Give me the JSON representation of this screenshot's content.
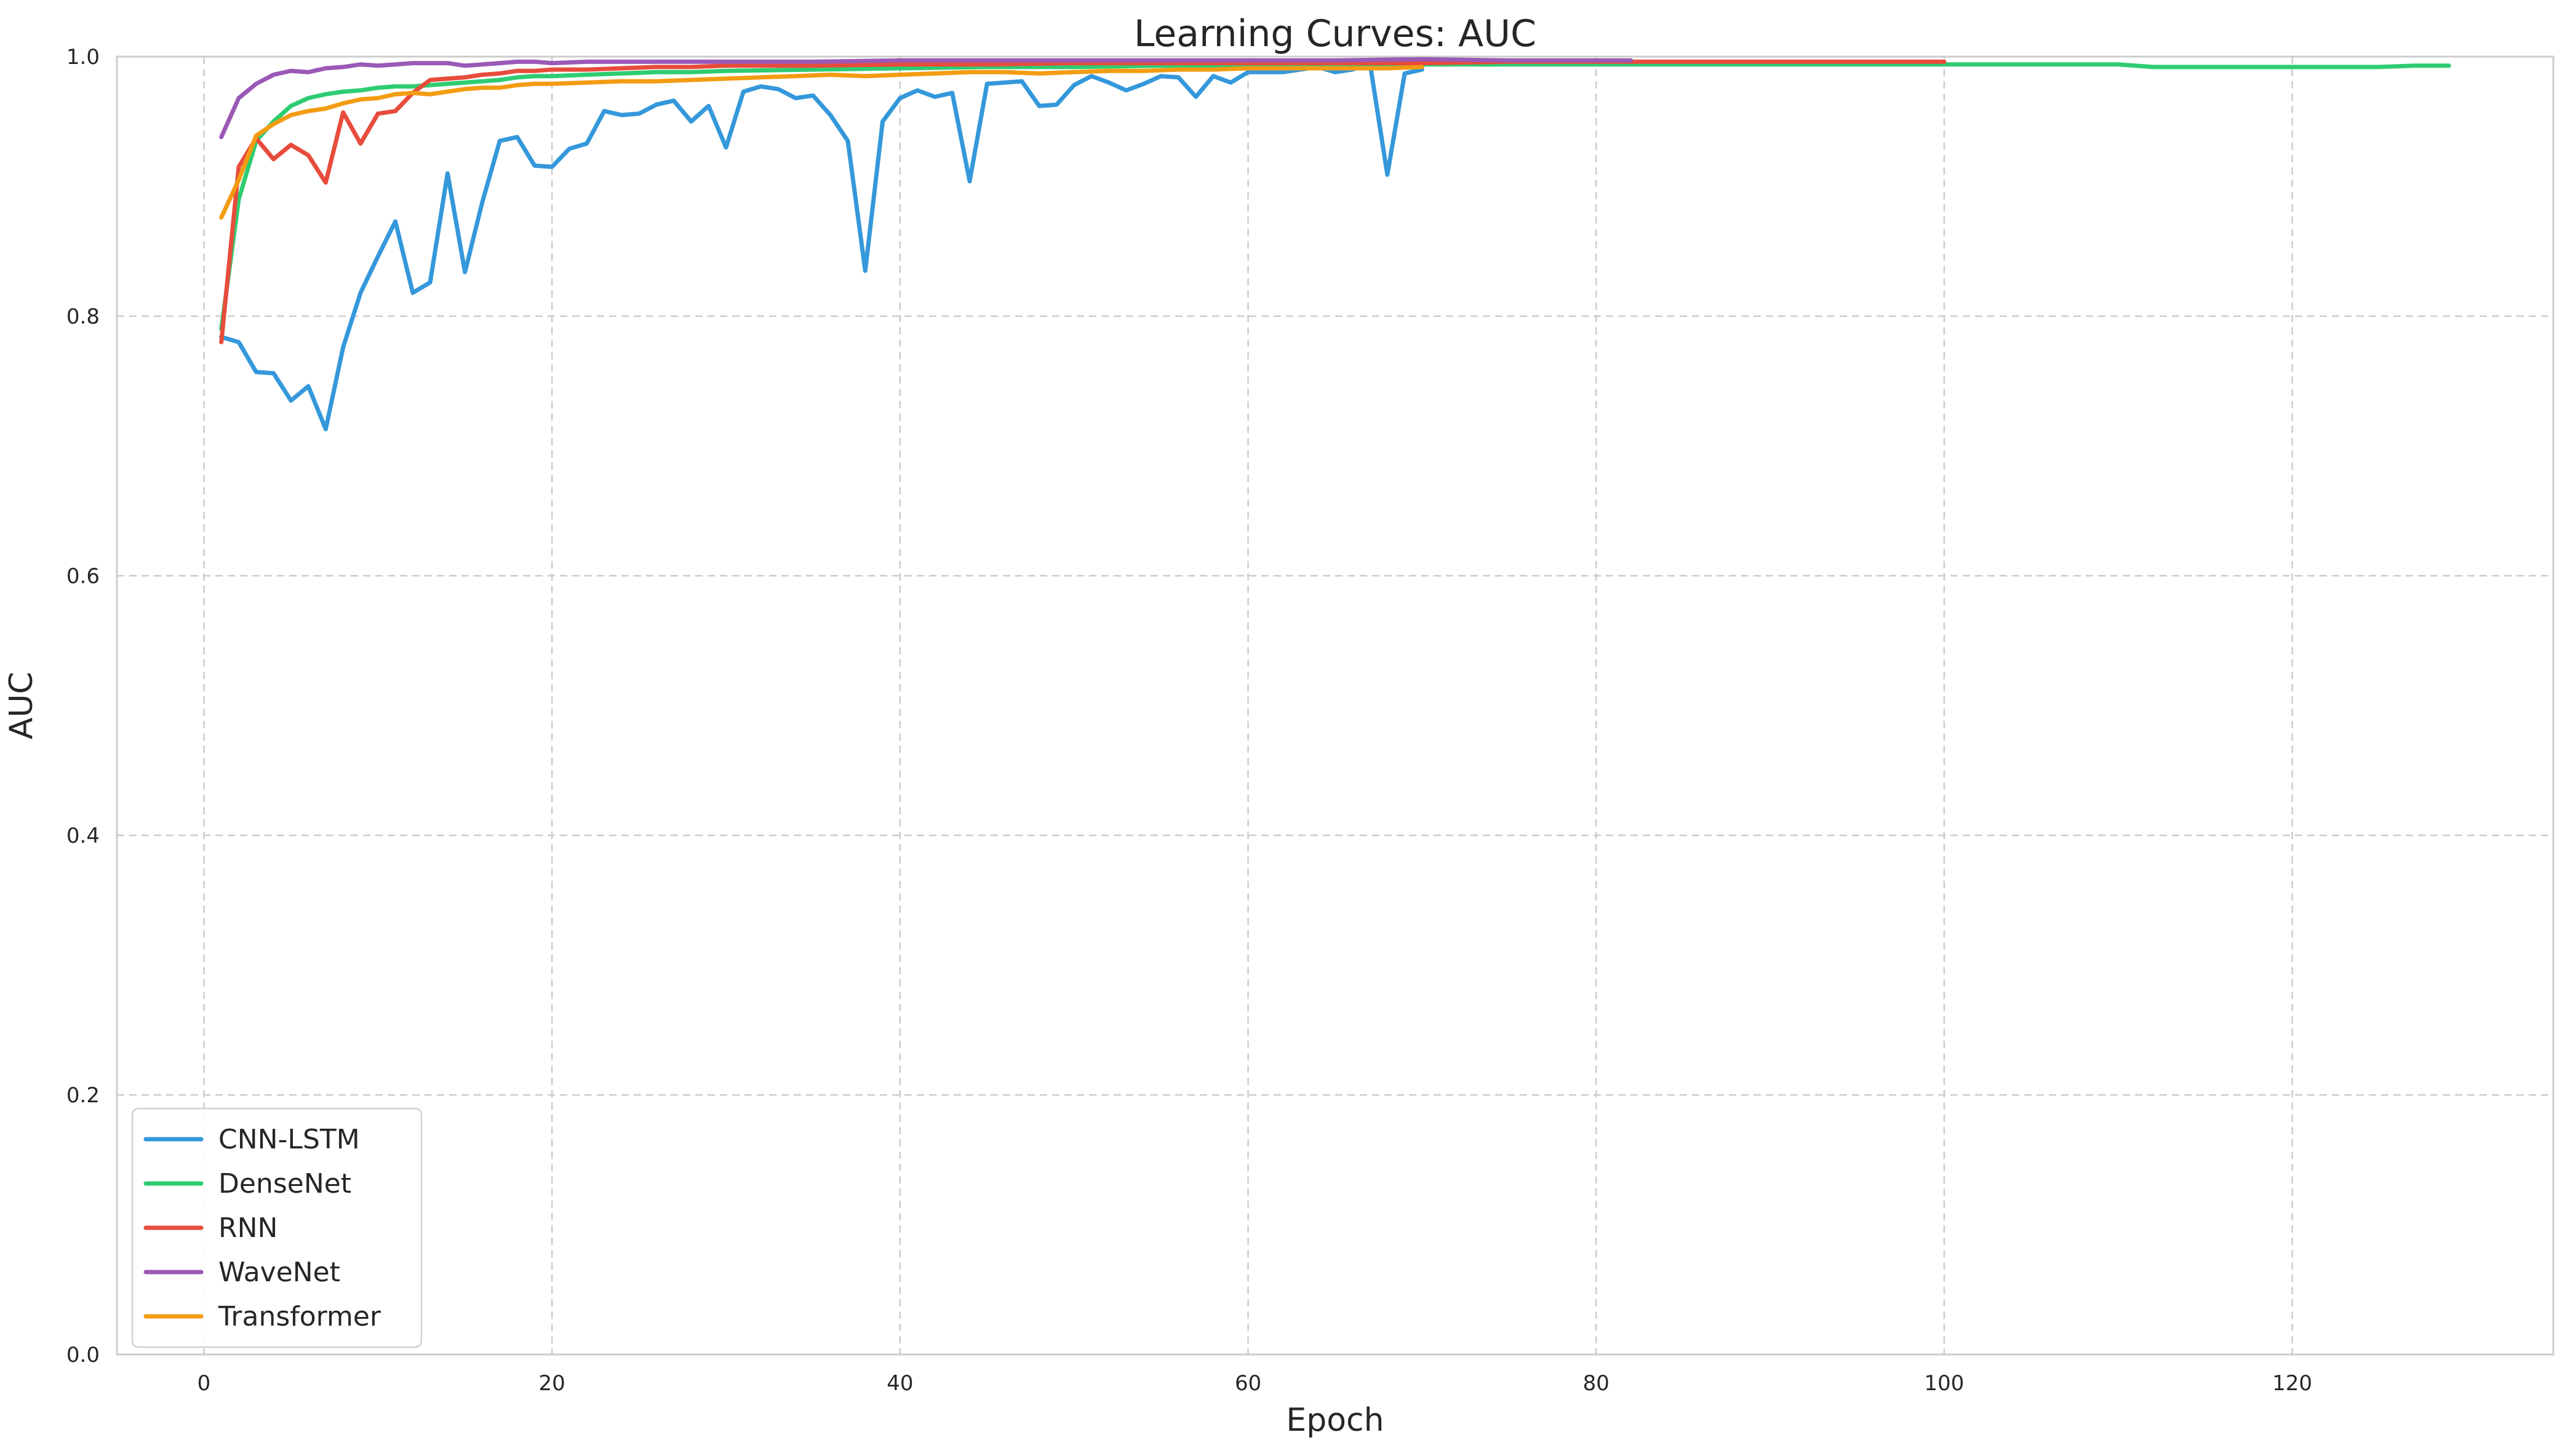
{
  "chart_data": {
    "type": "line",
    "title": "Learning Curves: AUC",
    "xlabel": "Epoch",
    "ylabel": "AUC",
    "xlim": [
      -5,
      135
    ],
    "ylim": [
      0.0,
      1.0
    ],
    "xticks": [
      0,
      20,
      40,
      60,
      80,
      100,
      120
    ],
    "yticks": [
      0.0,
      0.2,
      0.4,
      0.6,
      0.8,
      1.0
    ],
    "xtick_labels": [
      "0",
      "20",
      "40",
      "60",
      "80",
      "100",
      "120"
    ],
    "ytick_labels": [
      "0.0",
      "0.2",
      "0.4",
      "0.6",
      "0.8",
      "1.0"
    ],
    "grid": true,
    "legend_position": "lower-left",
    "series": [
      {
        "name": "CNN-LSTM",
        "color": "#3498db",
        "x": [
          1,
          2,
          3,
          4,
          5,
          6,
          7,
          8,
          9,
          10,
          11,
          12,
          13,
          14,
          15,
          16,
          17,
          18,
          19,
          20,
          21,
          22,
          23,
          24,
          25,
          26,
          27,
          28,
          29,
          30,
          31,
          32,
          33,
          34,
          35,
          36,
          37,
          38,
          39,
          40,
          41,
          42,
          43,
          44,
          45,
          46,
          47,
          48,
          49,
          50,
          51,
          52,
          53,
          54,
          55,
          56,
          57,
          58,
          59,
          60,
          61,
          62,
          63,
          64,
          65,
          66,
          67,
          68,
          69,
          70
        ],
        "y": [
          0.784,
          0.78,
          0.757,
          0.756,
          0.735,
          0.746,
          0.713,
          0.776,
          0.818,
          0.846,
          0.873,
          0.818,
          0.826,
          0.91,
          0.834,
          0.888,
          0.935,
          0.938,
          0.916,
          0.915,
          0.929,
          0.933,
          0.958,
          0.955,
          0.956,
          0.963,
          0.966,
          0.95,
          0.962,
          0.93,
          0.973,
          0.977,
          0.975,
          0.968,
          0.97,
          0.955,
          0.935,
          0.835,
          0.95,
          0.968,
          0.974,
          0.969,
          0.972,
          0.904,
          0.979,
          0.98,
          0.981,
          0.962,
          0.963,
          0.978,
          0.985,
          0.98,
          0.974,
          0.979,
          0.985,
          0.984,
          0.969,
          0.985,
          0.98,
          0.988,
          0.988,
          0.988,
          0.99,
          0.992,
          0.988,
          0.99,
          0.995,
          0.909,
          0.987,
          0.99
        ]
      },
      {
        "name": "DenseNet",
        "color": "#2ecc71",
        "x": [
          1,
          2,
          3,
          4,
          5,
          6,
          7,
          8,
          9,
          10,
          11,
          12,
          13,
          14,
          15,
          16,
          17,
          18,
          19,
          20,
          22,
          24,
          26,
          28,
          30,
          35,
          40,
          45,
          50,
          55,
          60,
          65,
          70,
          75,
          80,
          85,
          90,
          95,
          100,
          105,
          108,
          110,
          112,
          115,
          120,
          125,
          127,
          129
        ],
        "y": [
          0.79,
          0.89,
          0.935,
          0.95,
          0.962,
          0.968,
          0.971,
          0.973,
          0.974,
          0.976,
          0.977,
          0.977,
          0.978,
          0.979,
          0.98,
          0.981,
          0.982,
          0.984,
          0.985,
          0.985,
          0.986,
          0.987,
          0.988,
          0.988,
          0.989,
          0.99,
          0.991,
          0.992,
          0.992,
          0.993,
          0.993,
          0.993,
          0.994,
          0.994,
          0.994,
          0.994,
          0.994,
          0.994,
          0.994,
          0.994,
          0.994,
          0.994,
          0.992,
          0.992,
          0.992,
          0.992,
          0.993,
          0.993
        ]
      },
      {
        "name": "RNN",
        "color": "#e74c3c",
        "x": [
          1,
          2,
          3,
          4,
          5,
          6,
          7,
          8,
          9,
          10,
          11,
          12,
          13,
          14,
          15,
          16,
          17,
          18,
          19,
          20,
          22,
          24,
          26,
          28,
          30,
          35,
          40,
          45,
          50,
          55,
          60,
          65,
          70,
          75,
          80,
          85,
          90,
          95,
          100
        ],
        "y": [
          0.78,
          0.915,
          0.937,
          0.921,
          0.932,
          0.924,
          0.903,
          0.957,
          0.933,
          0.956,
          0.958,
          0.972,
          0.982,
          0.983,
          0.984,
          0.986,
          0.987,
          0.989,
          0.989,
          0.99,
          0.99,
          0.991,
          0.992,
          0.992,
          0.993,
          0.993,
          0.994,
          0.994,
          0.995,
          0.995,
          0.995,
          0.995,
          0.995,
          0.996,
          0.996,
          0.996,
          0.996,
          0.996,
          0.996
        ]
      },
      {
        "name": "WaveNet",
        "color": "#9b59b6",
        "x": [
          1,
          2,
          3,
          4,
          5,
          6,
          7,
          8,
          9,
          10,
          11,
          12,
          13,
          14,
          15,
          16,
          17,
          18,
          19,
          20,
          22,
          24,
          26,
          28,
          30,
          35,
          40,
          45,
          50,
          55,
          60,
          65,
          70,
          75,
          80,
          82
        ],
        "y": [
          0.938,
          0.968,
          0.979,
          0.986,
          0.989,
          0.988,
          0.991,
          0.992,
          0.994,
          0.993,
          0.994,
          0.995,
          0.995,
          0.995,
          0.993,
          0.994,
          0.995,
          0.996,
          0.996,
          0.995,
          0.996,
          0.996,
          0.996,
          0.996,
          0.996,
          0.996,
          0.997,
          0.997,
          0.997,
          0.997,
          0.997,
          0.997,
          0.998,
          0.997,
          0.997,
          0.997
        ]
      },
      {
        "name": "Transformer",
        "color": "#f39c12",
        "x": [
          1,
          2,
          3,
          4,
          5,
          6,
          7,
          8,
          9,
          10,
          11,
          12,
          13,
          14,
          15,
          16,
          17,
          18,
          19,
          20,
          22,
          24,
          26,
          28,
          30,
          32,
          34,
          36,
          38,
          40,
          42,
          44,
          46,
          48,
          50,
          52,
          54,
          56,
          58,
          60,
          62,
          64,
          66,
          68,
          70
        ],
        "y": [
          0.876,
          0.905,
          0.939,
          0.948,
          0.955,
          0.958,
          0.96,
          0.964,
          0.967,
          0.968,
          0.971,
          0.972,
          0.971,
          0.973,
          0.975,
          0.976,
          0.976,
          0.978,
          0.979,
          0.979,
          0.98,
          0.981,
          0.981,
          0.982,
          0.983,
          0.984,
          0.985,
          0.986,
          0.985,
          0.986,
          0.987,
          0.988,
          0.988,
          0.987,
          0.988,
          0.989,
          0.989,
          0.99,
          0.99,
          0.991,
          0.991,
          0.991,
          0.991,
          0.991,
          0.992
        ]
      }
    ]
  }
}
